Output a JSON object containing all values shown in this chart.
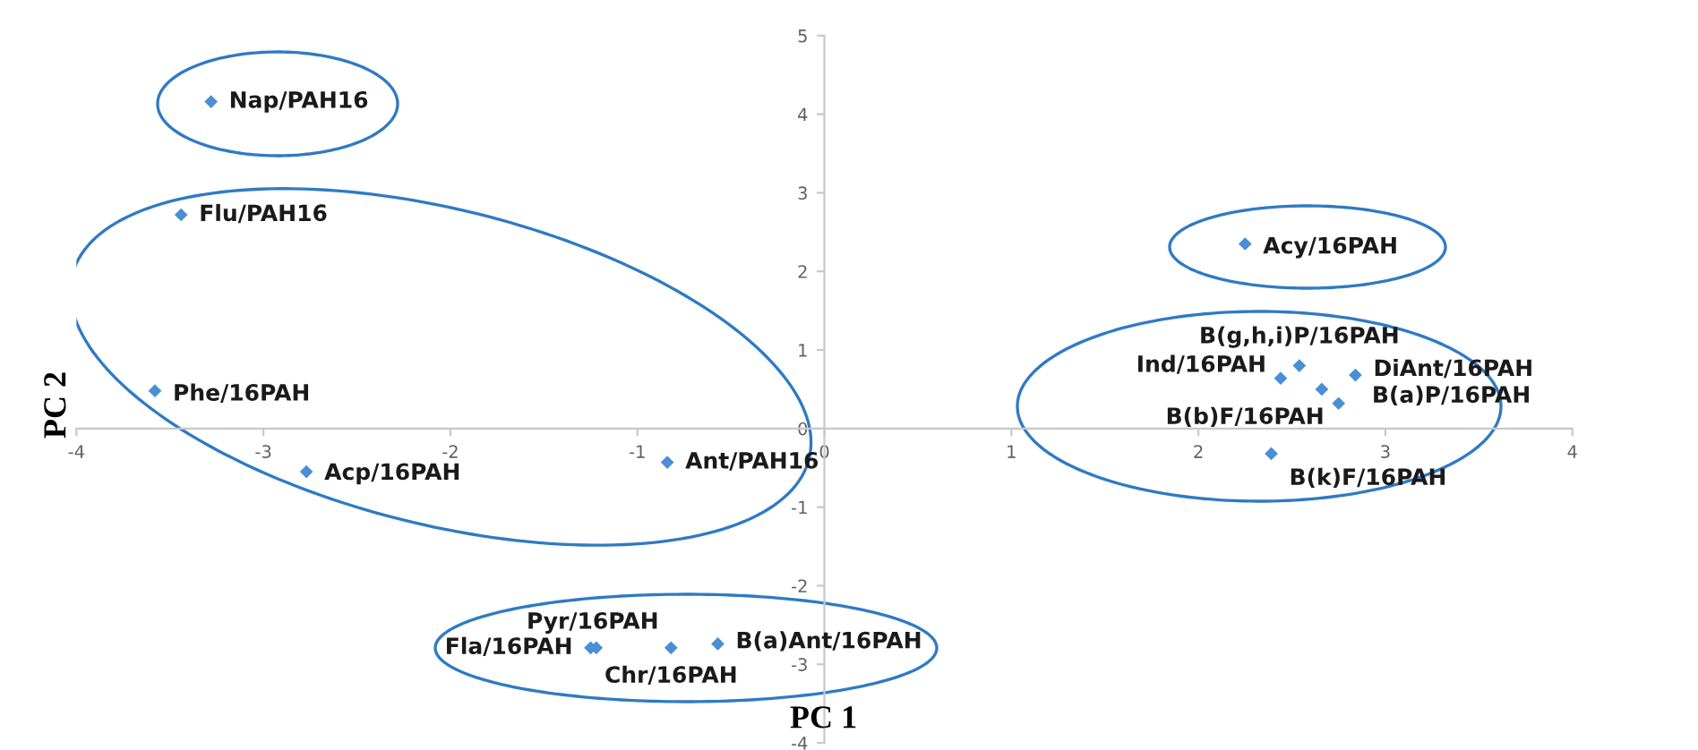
{
  "chart_data": {
    "type": "scatter",
    "xlabel": "PC 1",
    "ylabel": "PC 2",
    "x": [
      -3.28,
      -3.44,
      -3.58,
      -2.77,
      -0.84,
      -1.22,
      -1.25,
      -0.82,
      -0.57,
      2.25,
      2.54,
      2.44,
      2.66,
      2.84,
      2.75,
      2.39
    ],
    "values": [
      4.16,
      2.72,
      0.48,
      -0.55,
      -0.43,
      -2.79,
      -2.79,
      -2.79,
      -2.74,
      2.35,
      0.8,
      0.64,
      0.5,
      0.68,
      0.32,
      -0.32
    ],
    "color": "#4a8fd4",
    "marker": "diamond",
    "grid": false,
    "xlim": [
      -4,
      4
    ],
    "ylim": [
      -4,
      5
    ],
    "xticks": [
      -4,
      -3,
      -2,
      -1,
      0,
      1,
      2,
      3,
      4
    ],
    "yticks": [
      -4,
      -3,
      -2,
      -1,
      0,
      1,
      2,
      3,
      4,
      5
    ],
    "annotations": [
      {
        "text": "Nap/PAH16",
        "x": -3.28,
        "y": 4.16
      },
      {
        "text": "Flu/PAH16",
        "x": -3.44,
        "y": 2.72
      },
      {
        "text": "Phe/16PAH",
        "x": -3.58,
        "y": 0.48
      },
      {
        "text": "Acp/16PAH",
        "x": -2.77,
        "y": -0.55
      },
      {
        "text": "Ant/PAH16",
        "x": -0.84,
        "y": -0.43
      },
      {
        "text": "Pyr/16PAH",
        "x": -1.22,
        "y": -2.79
      },
      {
        "text": "Fla/16PAH",
        "x": -1.25,
        "y": -2.79
      },
      {
        "text": "Chr/16PAH",
        "x": -0.82,
        "y": -2.79
      },
      {
        "text": "B(a)Ant/16PAH",
        "x": -0.57,
        "y": -2.74
      },
      {
        "text": "Acy/16PAH",
        "x": 2.25,
        "y": 2.35
      },
      {
        "text": "B(g,h,i)P/16PAH",
        "x": 2.54,
        "y": 0.8
      },
      {
        "text": "Ind/16PAH",
        "x": 2.44,
        "y": 0.64
      },
      {
        "text": "B(a)P/16PAH",
        "x": 2.66,
        "y": 0.5
      },
      {
        "text": "DiAnt/16PAH",
        "x": 2.84,
        "y": 0.68
      },
      {
        "text": "B(b)F/16PAH",
        "x": 2.75,
        "y": 0.32
      },
      {
        "text": "B(k)F/16PAH",
        "x": 2.39,
        "y": -0.32
      }
    ]
  }
}
